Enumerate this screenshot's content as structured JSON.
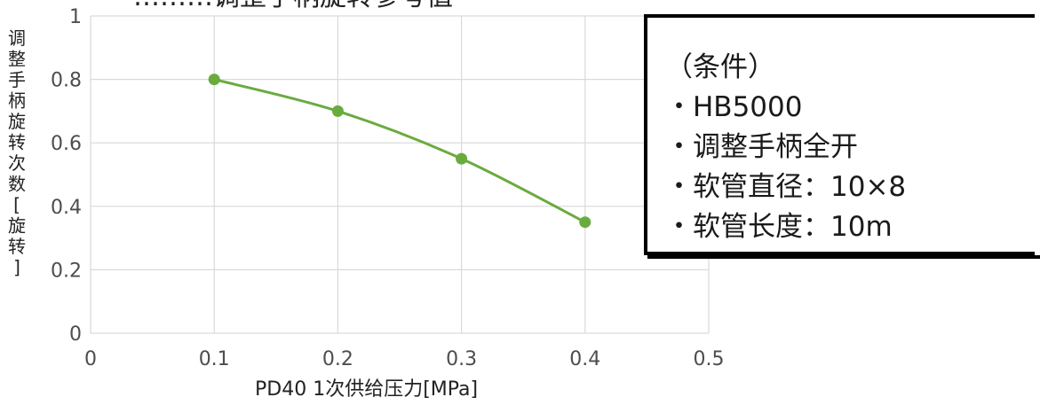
{
  "chart_data": {
    "type": "line",
    "title": "………调整手柄旋转参考值",
    "xlabel": "PD40 1次供给压力[MPa]",
    "ylabel": "调整手柄旋转次数[旋转]",
    "xlim": [
      0,
      0.5
    ],
    "ylim": [
      0,
      1
    ],
    "x_ticks": [
      "0",
      "0.1",
      "0.2",
      "0.3",
      "0.4",
      "0.5"
    ],
    "y_ticks": [
      "0",
      "0.2",
      "0.4",
      "0.6",
      "0.8",
      "1"
    ],
    "grid": true,
    "series": [
      {
        "x": [
          0.1,
          0.2,
          0.3,
          0.4
        ],
        "y": [
          0.8,
          0.7,
          0.55,
          0.35
        ],
        "color": "#6aab3f"
      }
    ]
  },
  "conditions": {
    "header": "（条件）",
    "items": [
      "・HB5000",
      "・调整手柄全开",
      "・软管直径：10×8",
      "・软管长度：10m"
    ]
  }
}
